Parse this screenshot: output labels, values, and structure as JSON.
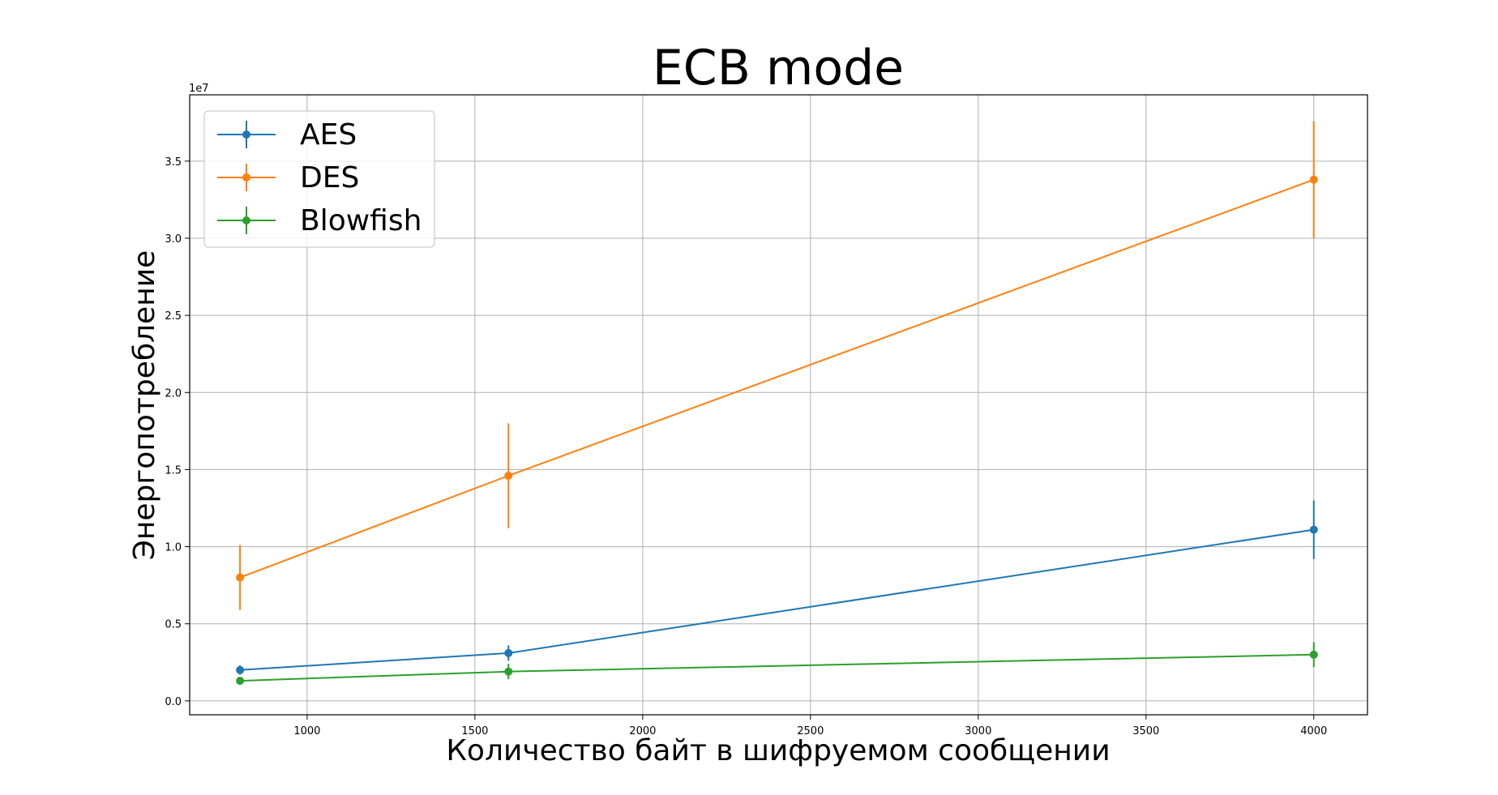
{
  "chart_data": {
    "type": "line",
    "title": "ECB mode",
    "xlabel": "Количество байт в шифруемом сообщении",
    "ylabel": "Энергопотребление",
    "y_offset_label": "1e7",
    "y_scale": 10000000,
    "xlim": [
      650,
      4160
    ],
    "ylim": [
      -0.09,
      3.93
    ],
    "x_ticks": [
      1000,
      1500,
      2000,
      2500,
      3000,
      3500,
      4000
    ],
    "x_tick_labels": [
      "1000",
      "1500",
      "2000",
      "2500",
      "3000",
      "3500",
      "4000"
    ],
    "y_ticks": [
      0.0,
      0.5,
      1.0,
      1.5,
      2.0,
      2.5,
      3.0,
      3.5
    ],
    "y_tick_labels": [
      "0.0",
      "0.5",
      "1.0",
      "1.5",
      "2.0",
      "2.5",
      "3.0",
      "3.5"
    ],
    "grid": true,
    "legend_position": "top-left",
    "error_bars": true,
    "x": [
      800,
      1600,
      4000
    ],
    "series": [
      {
        "name": "AES",
        "color": "#1f77b4",
        "values": [
          0.2,
          0.31,
          1.11
        ],
        "errors": [
          0.03,
          0.05,
          0.19
        ]
      },
      {
        "name": "DES",
        "color": "#ff7f0e",
        "values": [
          0.8,
          1.46,
          3.38
        ],
        "errors": [
          0.21,
          0.34,
          0.38
        ]
      },
      {
        "name": "Blowfish",
        "color": "#2ca02c",
        "values": [
          0.13,
          0.19,
          0.3
        ],
        "errors": [
          0.02,
          0.05,
          0.08
        ]
      }
    ]
  }
}
